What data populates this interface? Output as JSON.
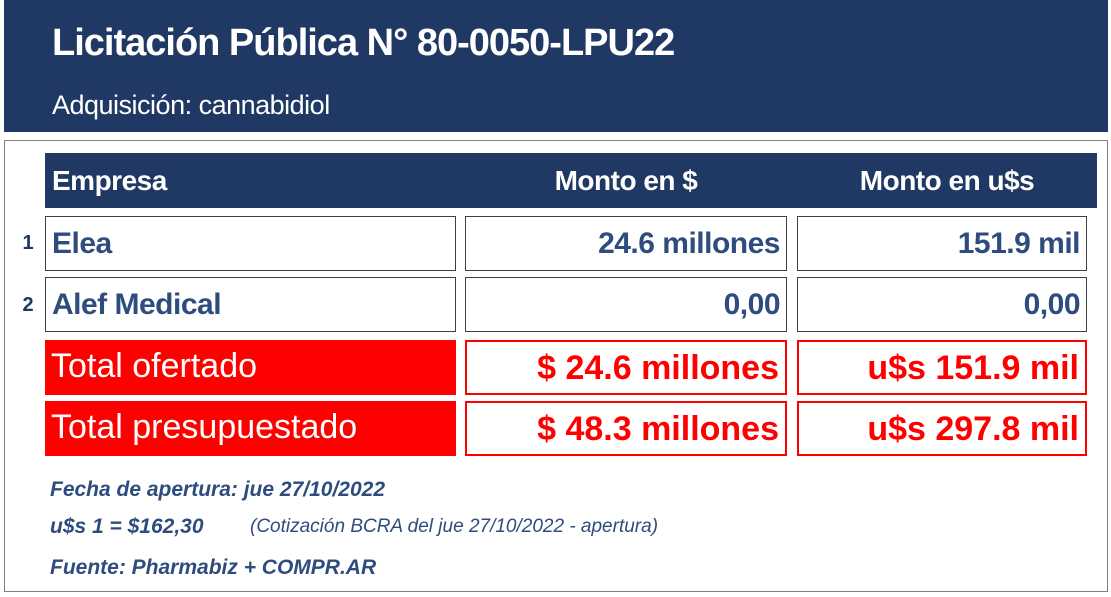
{
  "header": {
    "title": "Licitación Pública N° 80-0050-LPU22",
    "subtitle": "Adquisición: cannabidiol"
  },
  "table": {
    "columns": [
      "Empresa",
      "Monto en $",
      "Monto en u$s"
    ],
    "rows": [
      {
        "index": "1",
        "cells": [
          "Elea",
          "24.6 millones",
          "151.9 mil"
        ]
      },
      {
        "index": "2",
        "cells": [
          "Alef Medical",
          "0,00",
          "0,00"
        ]
      }
    ],
    "totals": [
      [
        "Total ofertado",
        "$ 24.6 millones",
        "u$s 151.9 mil"
      ],
      [
        "Total presupuestado",
        "$ 48.3 millones",
        "u$s 297.8 mil"
      ]
    ]
  },
  "notes": {
    "fecha": "Fecha de apertura: jue 27/10/2022",
    "cotizacion": "u$s 1 = $162,30",
    "cotizacion_detail": "(Cotización BCRA del jue 27/10/2022 - apertura)",
    "fuente": "Fuente: Pharmabiz + COMPR.AR"
  }
}
